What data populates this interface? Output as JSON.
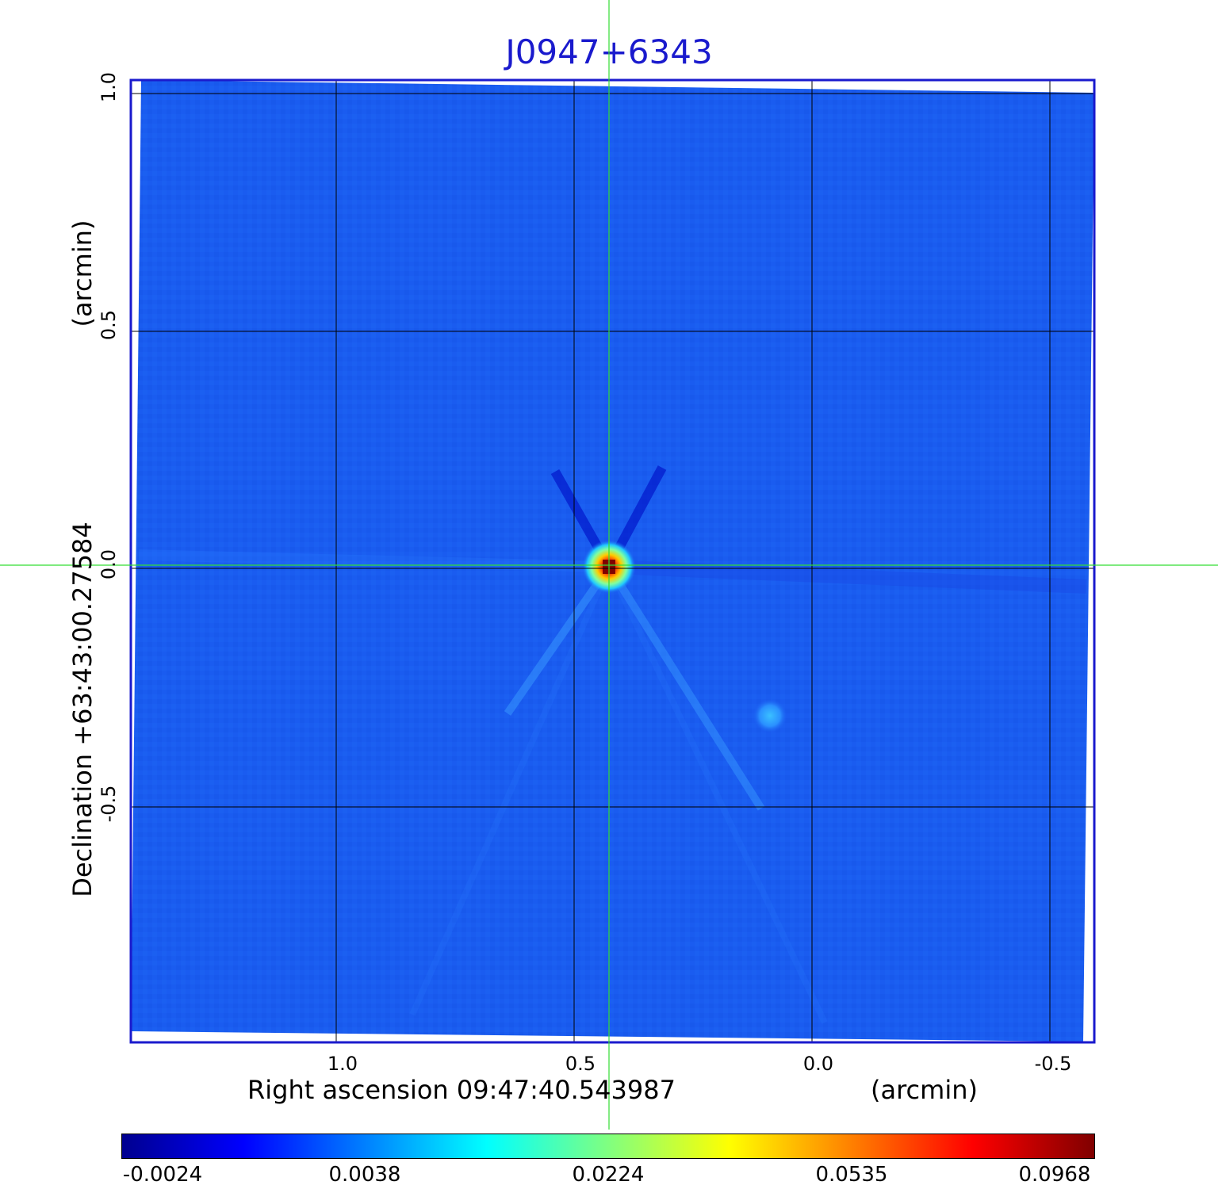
{
  "title": "J0947+6343",
  "x_axis": {
    "label": "Right ascension  09:47:40.543987",
    "unit": "(arcmin)",
    "ticks": [
      "1.0",
      "0.5",
      "0.0",
      "-0.5"
    ]
  },
  "y_axis": {
    "label": "Declination  +63:43:00.27584",
    "unit": "(arcmin)",
    "ticks": [
      "1.0",
      "0.5",
      "0.0",
      "-0.5"
    ]
  },
  "colorbar": {
    "ticks": [
      "-0.0024",
      "0.0038",
      "0.0224",
      "0.0535",
      "0.0968"
    ],
    "colors": [
      "#00008f",
      "#0000ff",
      "#0080ff",
      "#00ffff",
      "#80ff80",
      "#ffff00",
      "#ff8000",
      "#ff0000",
      "#800000"
    ]
  },
  "colors": {
    "background_map": "#1a5cf0",
    "title": "#1a1acd",
    "frame": "#1a1acd",
    "crosshair": "#33dd33"
  }
}
